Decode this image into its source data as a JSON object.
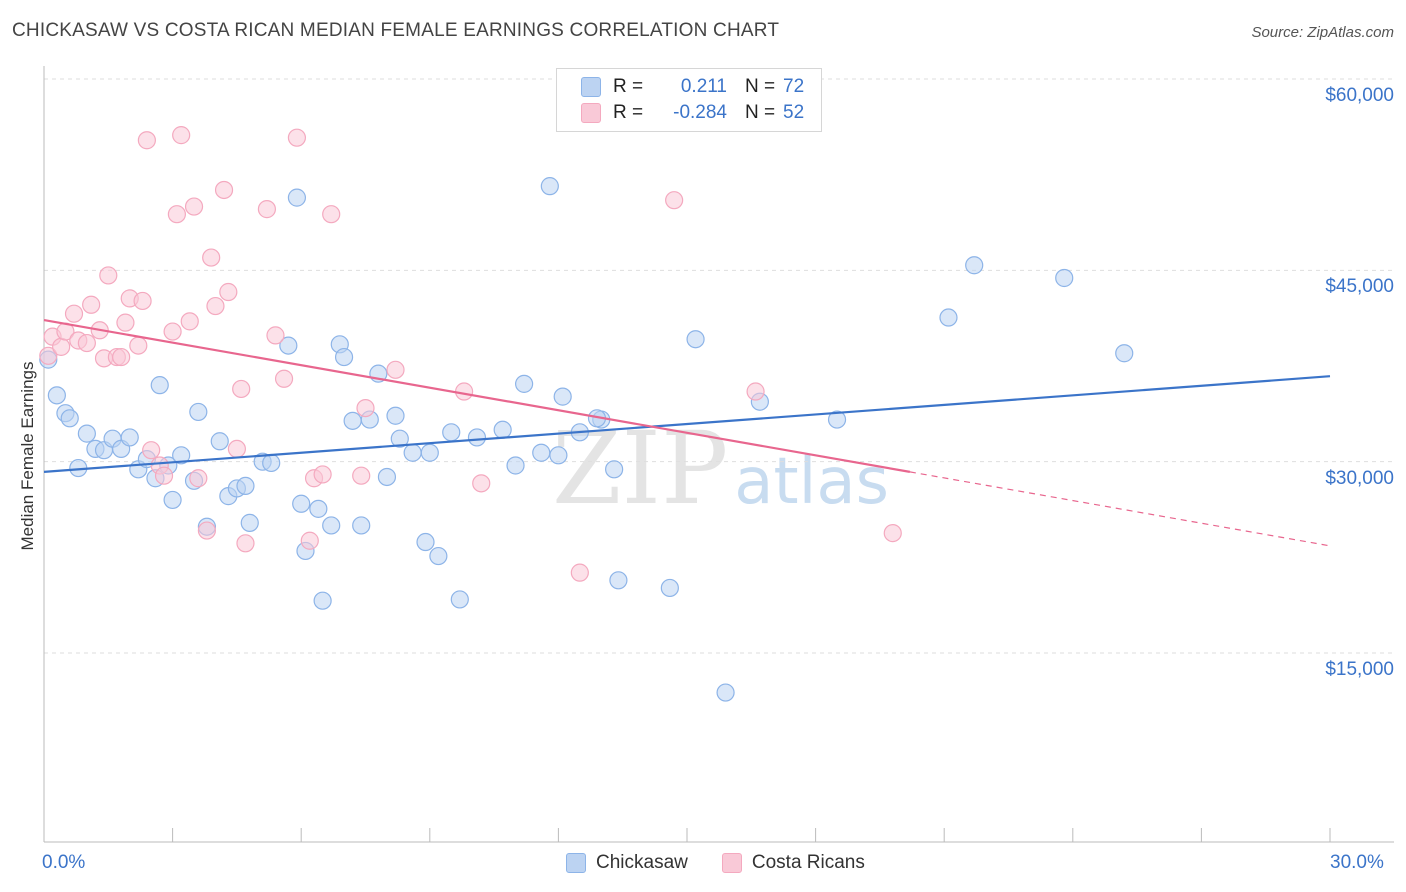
{
  "header": {
    "title": "CHICKASAW VS COSTA RICAN MEDIAN FEMALE EARNINGS CORRELATION CHART",
    "source": "Source: ZipAtlas.com"
  },
  "watermark": {
    "zip": "ZIP",
    "atlas": "atlas"
  },
  "legend": {
    "rows": [
      {
        "r_label": "R =",
        "r_value": "0.211",
        "n_label": "N =",
        "n_value": "72",
        "color": "#8db4e8"
      },
      {
        "r_label": "R =",
        "r_value": "-0.284",
        "n_label": "N =",
        "n_value": "52",
        "color": "#f4a9bf"
      }
    ]
  },
  "bottom_legend": {
    "items": [
      "Chickasaw",
      "Costa Ricans"
    ]
  },
  "chart_data": {
    "type": "scatter",
    "title": "CHICKASAW VS COSTA RICAN MEDIAN FEMALE EARNINGS CORRELATION CHART",
    "xlabel": "",
    "ylabel": "Median Female Earnings",
    "xlim": [
      0,
      30
    ],
    "ylim": [
      0,
      62000
    ],
    "x_ticks_labeled": [
      "0.0%",
      "30.0%"
    ],
    "y_ticks": [
      15000,
      30000,
      45000,
      60000
    ],
    "y_tick_labels": [
      "$15,000",
      "$30,000",
      "$45,000",
      "$60,000"
    ],
    "grid": "horizontal dashed",
    "colors": {
      "chickasaw": "#3b74c9",
      "chickasaw_fill": "#bcd3f2",
      "costa": "#e8668e",
      "costa_fill": "#f9c9d7"
    },
    "series": [
      {
        "name": "Chickasaw",
        "trend": {
          "x": [
            0,
            30
          ],
          "y": [
            29200,
            36700
          ]
        },
        "points": [
          [
            0.1,
            38000
          ],
          [
            0.3,
            35200
          ],
          [
            0.5,
            33800
          ],
          [
            0.6,
            33400
          ],
          [
            0.8,
            29500
          ],
          [
            1.0,
            32200
          ],
          [
            1.2,
            31000
          ],
          [
            1.4,
            30900
          ],
          [
            1.6,
            31800
          ],
          [
            1.8,
            31000
          ],
          [
            2.0,
            31900
          ],
          [
            2.2,
            29400
          ],
          [
            2.4,
            30200
          ],
          [
            2.6,
            28700
          ],
          [
            2.7,
            36000
          ],
          [
            2.9,
            29700
          ],
          [
            3.0,
            27000
          ],
          [
            3.2,
            30500
          ],
          [
            3.5,
            28500
          ],
          [
            3.6,
            33900
          ],
          [
            3.8,
            24900
          ],
          [
            4.1,
            31600
          ],
          [
            4.3,
            27300
          ],
          [
            4.5,
            27900
          ],
          [
            4.7,
            28100
          ],
          [
            4.8,
            25200
          ],
          [
            5.1,
            30000
          ],
          [
            5.3,
            29900
          ],
          [
            5.7,
            39100
          ],
          [
            5.9,
            50700
          ],
          [
            6.0,
            26700
          ],
          [
            6.1,
            23000
          ],
          [
            6.4,
            26300
          ],
          [
            6.5,
            19100
          ],
          [
            6.7,
            25000
          ],
          [
            6.9,
            39200
          ],
          [
            7.0,
            38200
          ],
          [
            7.2,
            33200
          ],
          [
            7.4,
            25000
          ],
          [
            7.6,
            33300
          ],
          [
            7.8,
            36900
          ],
          [
            8.0,
            28800
          ],
          [
            8.2,
            33600
          ],
          [
            8.3,
            31800
          ],
          [
            8.6,
            30700
          ],
          [
            8.9,
            23700
          ],
          [
            9.0,
            30700
          ],
          [
            9.2,
            22600
          ],
          [
            9.5,
            32300
          ],
          [
            9.7,
            19200
          ],
          [
            10.1,
            31900
          ],
          [
            10.7,
            32500
          ],
          [
            11.0,
            29700
          ],
          [
            11.2,
            36100
          ],
          [
            11.6,
            30700
          ],
          [
            11.8,
            51600
          ],
          [
            12.0,
            30500
          ],
          [
            12.1,
            35100
          ],
          [
            12.5,
            32300
          ],
          [
            13.0,
            33300
          ],
          [
            13.3,
            29400
          ],
          [
            13.4,
            20700
          ],
          [
            14.6,
            20100
          ],
          [
            15.2,
            39600
          ],
          [
            15.9,
            11900
          ],
          [
            16.7,
            34700
          ],
          [
            18.5,
            33300
          ],
          [
            21.1,
            41300
          ],
          [
            21.7,
            45400
          ],
          [
            23.8,
            44400
          ],
          [
            25.2,
            38500
          ],
          [
            12.9,
            33400
          ]
        ]
      },
      {
        "name": "Costa Ricans",
        "trend": {
          "x": [
            0,
            20.2
          ],
          "y": [
            41100,
            29200
          ]
        },
        "trend_dashed": {
          "x": [
            20.2,
            30
          ],
          "y": [
            29200,
            23400
          ]
        },
        "points": [
          [
            0.1,
            38300
          ],
          [
            0.2,
            39800
          ],
          [
            0.4,
            39000
          ],
          [
            0.5,
            40200
          ],
          [
            0.7,
            41600
          ],
          [
            0.8,
            39500
          ],
          [
            1.0,
            39300
          ],
          [
            1.1,
            42300
          ],
          [
            1.3,
            40300
          ],
          [
            1.4,
            38100
          ],
          [
            1.5,
            44600
          ],
          [
            1.7,
            38200
          ],
          [
            1.8,
            38200
          ],
          [
            1.9,
            40900
          ],
          [
            2.0,
            42800
          ],
          [
            2.2,
            39100
          ],
          [
            2.3,
            42600
          ],
          [
            2.4,
            55200
          ],
          [
            2.5,
            30900
          ],
          [
            2.7,
            29700
          ],
          [
            2.8,
            28900
          ],
          [
            3.0,
            40200
          ],
          [
            3.1,
            49400
          ],
          [
            3.2,
            55600
          ],
          [
            3.4,
            41000
          ],
          [
            3.5,
            50000
          ],
          [
            3.6,
            28700
          ],
          [
            3.8,
            24600
          ],
          [
            3.9,
            46000
          ],
          [
            4.0,
            42200
          ],
          [
            4.2,
            51300
          ],
          [
            4.3,
            43300
          ],
          [
            4.5,
            31000
          ],
          [
            4.6,
            35700
          ],
          [
            4.7,
            23600
          ],
          [
            5.2,
            49800
          ],
          [
            5.4,
            39900
          ],
          [
            5.6,
            36500
          ],
          [
            5.9,
            55400
          ],
          [
            6.2,
            23800
          ],
          [
            6.3,
            28700
          ],
          [
            6.5,
            29000
          ],
          [
            6.7,
            49400
          ],
          [
            7.4,
            28900
          ],
          [
            7.5,
            34200
          ],
          [
            8.2,
            37200
          ],
          [
            9.8,
            35500
          ],
          [
            10.2,
            28300
          ],
          [
            12.5,
            21300
          ],
          [
            14.7,
            50500
          ],
          [
            16.6,
            35500
          ],
          [
            19.8,
            24400
          ]
        ]
      }
    ]
  }
}
